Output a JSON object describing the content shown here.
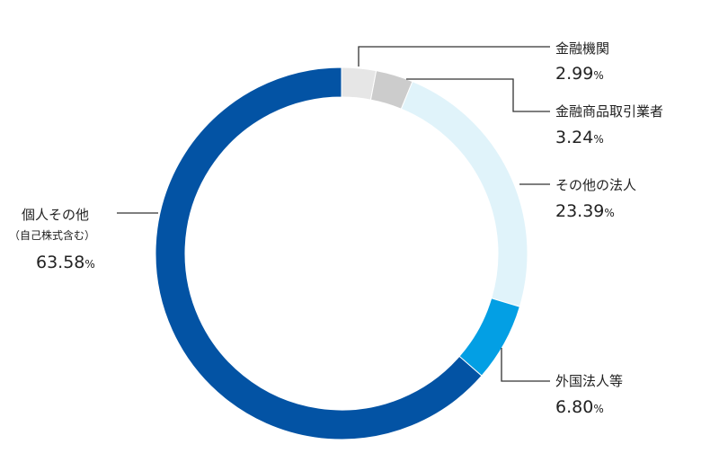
{
  "chart_data": {
    "type": "pie",
    "start": "top, clockwise",
    "slices": [
      {
        "label": "金融機関",
        "sublabel": "",
        "value": 2.99,
        "value_text": "2.99",
        "unit": "%",
        "color": "#e6e6e6"
      },
      {
        "label": "金融商品取引業者",
        "sublabel": "",
        "value": 3.24,
        "value_text": "3.24",
        "unit": "%",
        "color": "#cccccc"
      },
      {
        "label": "その他の法人",
        "sublabel": "",
        "value": 23.39,
        "value_text": "23.39",
        "unit": "%",
        "color": "#e0f3fa"
      },
      {
        "label": "外国法人等",
        "sublabel": "",
        "value": 6.8,
        "value_text": "6.80",
        "unit": "%",
        "color": "#039fe4"
      },
      {
        "label": "個人その他",
        "sublabel": "（自己株式含む）",
        "value": 63.58,
        "value_text": "63.58",
        "unit": "%",
        "color": "#0353a4"
      }
    ]
  }
}
